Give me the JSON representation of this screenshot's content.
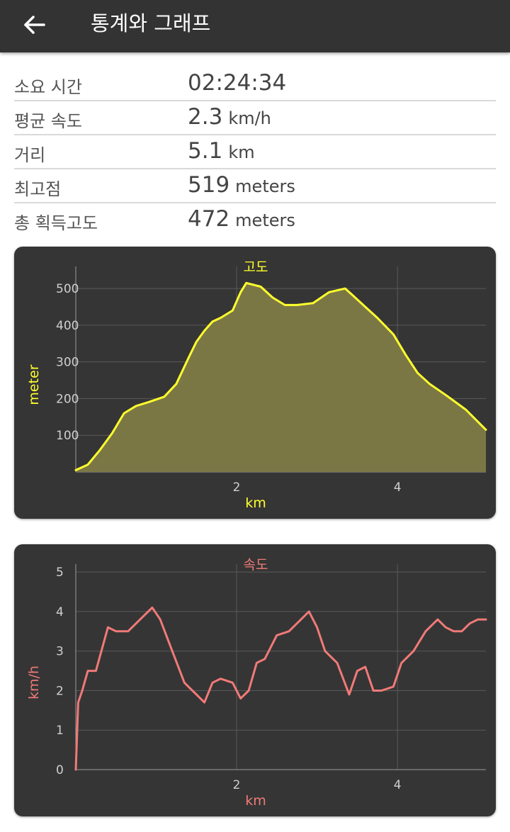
{
  "app": {
    "title": "통계와 그래프",
    "back_icon": "arrow-left-icon"
  },
  "stats": {
    "rows": [
      {
        "label": "소요 시간",
        "value": "02:24:34",
        "unit": ""
      },
      {
        "label": "평균 속도",
        "value": "2.3",
        "unit": "km/h"
      },
      {
        "label": "거리",
        "value": "5.1",
        "unit": "km"
      },
      {
        "label": "최고점",
        "value": "519",
        "unit": "meters"
      },
      {
        "label": "총 획득고도",
        "value": "472",
        "unit": "meters"
      }
    ]
  },
  "colors": {
    "elevation": "#ffff2e",
    "speed": "#f07a78",
    "card_bg": "#353535",
    "topbar": "#333333"
  },
  "chart_data": [
    {
      "type": "area",
      "title": "고도",
      "xlabel": "km",
      "ylabel": "meter",
      "xlim": [
        0,
        5.1
      ],
      "ylim": [
        0,
        560
      ],
      "x_ticks": [
        2,
        4
      ],
      "y_ticks": [
        100,
        200,
        300,
        400,
        500
      ],
      "grid": true,
      "x": [
        0,
        0.15,
        0.3,
        0.45,
        0.6,
        0.75,
        0.9,
        1.1,
        1.25,
        1.4,
        1.5,
        1.6,
        1.7,
        1.8,
        1.95,
        2.05,
        2.12,
        2.3,
        2.45,
        2.6,
        2.75,
        2.95,
        3.15,
        3.35,
        3.45,
        3.6,
        3.75,
        3.95,
        4.1,
        4.25,
        4.4,
        4.6,
        4.85,
        5.1
      ],
      "y": [
        5,
        20,
        60,
        105,
        160,
        180,
        190,
        205,
        240,
        310,
        355,
        385,
        410,
        420,
        440,
        490,
        515,
        505,
        475,
        455,
        455,
        460,
        490,
        500,
        480,
        450,
        420,
        375,
        320,
        270,
        240,
        210,
        170,
        115
      ]
    },
    {
      "type": "line",
      "title": "속도",
      "xlabel": "km",
      "ylabel": "km/h",
      "xlim": [
        0,
        5.1
      ],
      "ylim": [
        0,
        5.2
      ],
      "x_ticks": [
        2,
        4
      ],
      "y_ticks": [
        0,
        1,
        2,
        3,
        4,
        5
      ],
      "grid": true,
      "x": [
        0,
        0.03,
        0.08,
        0.15,
        0.25,
        0.4,
        0.5,
        0.55,
        0.65,
        0.8,
        0.95,
        1.05,
        1.2,
        1.35,
        1.5,
        1.6,
        1.7,
        1.8,
        1.95,
        2.05,
        2.15,
        2.25,
        2.35,
        2.5,
        2.65,
        2.8,
        2.9,
        3.0,
        3.1,
        3.25,
        3.4,
        3.5,
        3.6,
        3.7,
        3.8,
        3.95,
        4.05,
        4.2,
        4.35,
        4.5,
        4.6,
        4.7,
        4.8,
        4.9,
        5.0,
        5.1
      ],
      "y": [
        0,
        1.7,
        2.0,
        2.5,
        2.5,
        3.6,
        3.5,
        3.5,
        3.5,
        3.8,
        4.1,
        3.8,
        3.0,
        2.2,
        1.9,
        1.7,
        2.2,
        2.3,
        2.2,
        1.8,
        2.0,
        2.7,
        2.8,
        3.4,
        3.5,
        3.8,
        4.0,
        3.6,
        3.0,
        2.7,
        1.9,
        2.5,
        2.6,
        2.0,
        2.0,
        2.1,
        2.7,
        3.0,
        3.5,
        3.8,
        3.6,
        3.5,
        3.5,
        3.7,
        3.8,
        3.8
      ]
    }
  ]
}
